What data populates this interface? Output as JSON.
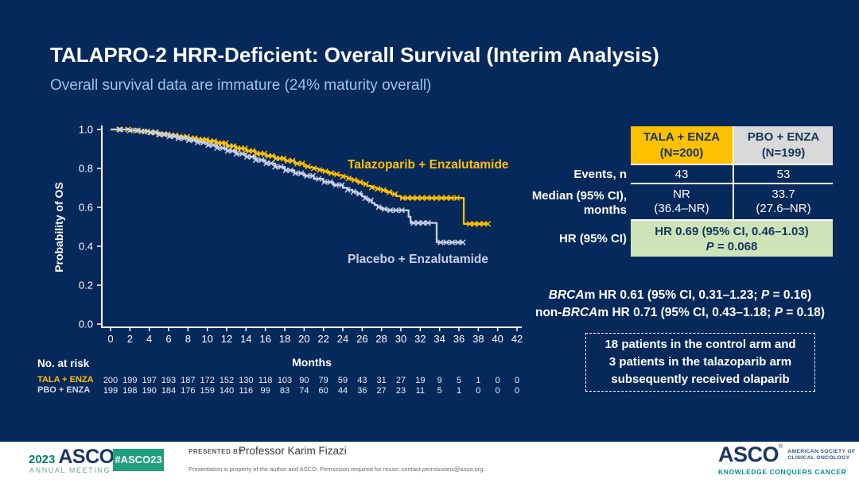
{
  "slide": {
    "title": "TALAPRO-2 HRR-Deficient: Overall Survival (Interim Analysis)",
    "subtitle": "Overall survival data are immature (24% maturity overall)"
  },
  "colors": {
    "background_navy": "#06295B",
    "tala_yellow": "#FFC000",
    "pbo_gray": "#C8CFE5",
    "header_gray": "#D9D9D9",
    "hr_green": "#CDE3B8",
    "subtitle_blue": "#9CC3E9",
    "footer_teal": "#1FA07A",
    "asco_navy": "#1B3764"
  },
  "chart_data": {
    "type": "line",
    "subtype": "kaplan-meier-step",
    "xlabel": "Months",
    "ylabel": "Probability of OS",
    "xlim": [
      0,
      42
    ],
    "xtick_step": 2,
    "ylim": [
      0.0,
      1.0
    ],
    "ytick_step": 0.2,
    "grid": false,
    "series": [
      {
        "name": "Talazoparib + Enzalutamide",
        "color": "#FFC000",
        "steps": [
          [
            0,
            1.0
          ],
          [
            1,
            1.0
          ],
          [
            2,
            0.995
          ],
          [
            3,
            0.99
          ],
          [
            4,
            0.985
          ],
          [
            5,
            0.975
          ],
          [
            6,
            0.97
          ],
          [
            7,
            0.963
          ],
          [
            8,
            0.955
          ],
          [
            9,
            0.948
          ],
          [
            10,
            0.94
          ],
          [
            11,
            0.93
          ],
          [
            12,
            0.915
          ],
          [
            13,
            0.903
          ],
          [
            14,
            0.89
          ],
          [
            15,
            0.876
          ],
          [
            16,
            0.864
          ],
          [
            17,
            0.851
          ],
          [
            18,
            0.839
          ],
          [
            19,
            0.825
          ],
          [
            20,
            0.81
          ],
          [
            20.5,
            0.805
          ],
          [
            21,
            0.8
          ],
          [
            21.5,
            0.792
          ],
          [
            22,
            0.785
          ],
          [
            22.5,
            0.776
          ],
          [
            23,
            0.77
          ],
          [
            23.5,
            0.765
          ],
          [
            24,
            0.758
          ],
          [
            24.5,
            0.748
          ],
          [
            25,
            0.74
          ],
          [
            25.5,
            0.73
          ],
          [
            26,
            0.72
          ],
          [
            26.5,
            0.71
          ],
          [
            27,
            0.702
          ],
          [
            27.5,
            0.695
          ],
          [
            28,
            0.688
          ],
          [
            28.5,
            0.678
          ],
          [
            29,
            0.668
          ],
          [
            29.5,
            0.658
          ],
          [
            30,
            0.648
          ],
          [
            36.5,
            0.648
          ],
          [
            36.5,
            0.515
          ],
          [
            39,
            0.515
          ]
        ],
        "censors": [
          0.9,
          1.8,
          2.6,
          3.2,
          3.8,
          4.2,
          4.7,
          5.1,
          5.5,
          5.9,
          6.3,
          6.7,
          7.1,
          7.5,
          7.9,
          8.3,
          8.7,
          9.1,
          9.5,
          9.9,
          10.3,
          10.7,
          11.1,
          11.5,
          11.9,
          12.3,
          12.7,
          13.1,
          13.5,
          13.9,
          14.3,
          14.7,
          15.1,
          15.5,
          15.9,
          16.3,
          16.7,
          17.1,
          17.5,
          17.9,
          18.3,
          18.8,
          19.3,
          19.8,
          20.4,
          21.0,
          21.6,
          22.2,
          22.8,
          23.4,
          24.0,
          24.6,
          25.2,
          25.8,
          26.4,
          27.0,
          27.6,
          28.2,
          28.8,
          29.4,
          30.2,
          30.7,
          31.2,
          31.7,
          32.2,
          32.7,
          33.2,
          33.7,
          34.2,
          34.7,
          35.2,
          35.8,
          37.1,
          37.6,
          38.1,
          38.6,
          39.0
        ]
      },
      {
        "name": "Placebo + Enzalutamide",
        "color": "#C8CFE5",
        "steps": [
          [
            0,
            1.0
          ],
          [
            1,
            1.0
          ],
          [
            2,
            0.995
          ],
          [
            3,
            0.99
          ],
          [
            4,
            0.985
          ],
          [
            5,
            0.975
          ],
          [
            6,
            0.965
          ],
          [
            7,
            0.955
          ],
          [
            8,
            0.945
          ],
          [
            9,
            0.933
          ],
          [
            10,
            0.92
          ],
          [
            11,
            0.905
          ],
          [
            12,
            0.89
          ],
          [
            13,
            0.875
          ],
          [
            14,
            0.86
          ],
          [
            15,
            0.843
          ],
          [
            16,
            0.826
          ],
          [
            17,
            0.808
          ],
          [
            18,
            0.79
          ],
          [
            19,
            0.775
          ],
          [
            20,
            0.762
          ],
          [
            21,
            0.746
          ],
          [
            22,
            0.73
          ],
          [
            23,
            0.715
          ],
          [
            24,
            0.7
          ],
          [
            24.5,
            0.69
          ],
          [
            25,
            0.68
          ],
          [
            25.5,
            0.67
          ],
          [
            26,
            0.656
          ],
          [
            26.3,
            0.646
          ],
          [
            26.6,
            0.636
          ],
          [
            27,
            0.622
          ],
          [
            27.3,
            0.612
          ],
          [
            27.6,
            0.601
          ],
          [
            28,
            0.592
          ],
          [
            28.5,
            0.585
          ],
          [
            30.5,
            0.585
          ],
          [
            30.8,
            0.552
          ],
          [
            31,
            0.52
          ],
          [
            33.7,
            0.52
          ],
          [
            33.7,
            0.42
          ],
          [
            36.5,
            0.42
          ]
        ],
        "censors": [
          1.0,
          2.0,
          2.8,
          3.5,
          4.1,
          4.6,
          5.0,
          5.6,
          6.1,
          6.6,
          7.0,
          7.6,
          8.1,
          8.6,
          9.0,
          9.6,
          10.1,
          10.6,
          11.0,
          11.6,
          12.1,
          12.6,
          13.0,
          13.6,
          14.1,
          14.6,
          15.0,
          15.6,
          16.1,
          16.6,
          17.0,
          17.6,
          18.1,
          18.6,
          19.1,
          19.7,
          20.3,
          20.9,
          21.5,
          22.1,
          22.7,
          23.3,
          23.9,
          24.5,
          25.1,
          25.7,
          26.3,
          26.9,
          27.7,
          28.3,
          28.9,
          29.5,
          30.1,
          31.3,
          31.8,
          32.3,
          32.8,
          34.1,
          34.7,
          35.3,
          35.9,
          36.4
        ]
      }
    ],
    "risk_table": {
      "label": "No. at risk",
      "months": [
        0,
        2,
        4,
        6,
        8,
        10,
        12,
        14,
        16,
        18,
        20,
        22,
        24,
        26,
        28,
        30,
        32,
        34,
        36,
        38,
        40,
        42
      ],
      "rows": [
        {
          "label": "TALA + ENZA",
          "color": "#FFC000",
          "values": [
            200,
            199,
            197,
            193,
            187,
            172,
            152,
            130,
            118,
            103,
            90,
            79,
            59,
            43,
            31,
            27,
            19,
            9,
            5,
            1,
            0,
            0
          ]
        },
        {
          "label": "PBO + ENZA",
          "color": "#D4DAE8",
          "values": [
            199,
            198,
            190,
            184,
            176,
            159,
            140,
            116,
            99,
            83,
            74,
            60,
            44,
            36,
            27,
            23,
            11,
            5,
            1,
            0,
            0,
            0
          ]
        }
      ]
    }
  },
  "results_table": {
    "header": {
      "tala_line1": "TALA + ENZA",
      "tala_line2": "(N=200)",
      "pbo_line1": "PBO + ENZA",
      "pbo_line2": "(N=199)"
    },
    "events": {
      "label": "Events, n",
      "tala": "43",
      "pbo": "53"
    },
    "median": {
      "label_line1": "Median (95% CI),",
      "label_line2": "months",
      "tala_line1": "NR",
      "tala_line2": "(36.4–NR)",
      "pbo_line1": "33.7",
      "pbo_line2": "(27.6–NR)"
    },
    "hr": {
      "label": "HR (95% CI)",
      "line1": "HR 0.69 (95% CI, 0.46–1.03)",
      "p_italic": "P",
      "p_rest": " = 0.068"
    }
  },
  "subgroup": {
    "line1": {
      "brca": "BRCA",
      "rest": "m HR 0.61 (95% CI, 0.31–1.23; ",
      "p": "P",
      "end": " = 0.16)"
    },
    "line2": {
      "pre": "non-",
      "brca": "BRCA",
      "rest": "m HR 0.71 (95% CI, 0.43–1.18; ",
      "p": "P",
      "end": " = 0.18)"
    }
  },
  "callout_box": {
    "line1": "18 patients in the control arm and",
    "line2": "3 patients in the talazoparib arm",
    "line3": "subsequently received olaparib"
  },
  "footer": {
    "year": "2023",
    "asco": "ASCO",
    "reg": "®",
    "annual": "ANNUAL MEETING",
    "hashtag": "#ASCO23",
    "presented_by": "PRESENTED BY:",
    "presenter": "Professor Karim Fizazi",
    "disclaimer": "Presentation is property of the author and ASCO. Permission required for reuse; contact permissions@asco.org.",
    "society_line1": "AMERICAN SOCIETY OF",
    "society_line2": "CLINICAL ONCOLOGY",
    "tagline": "KNOWLEDGE CONQUERS CANCER"
  }
}
